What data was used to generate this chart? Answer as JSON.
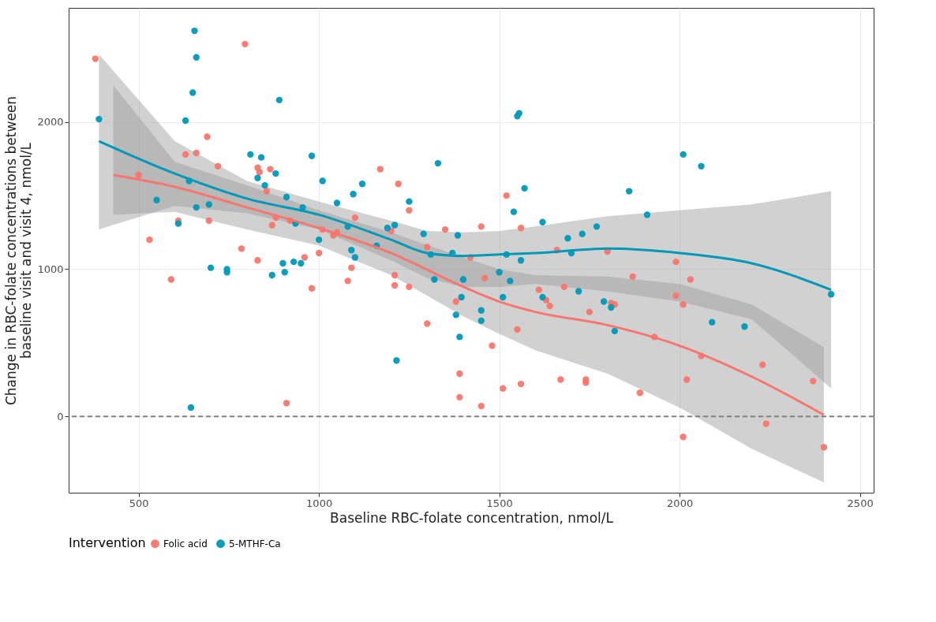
{
  "chart_data": {
    "type": "scatter",
    "xlabel": "Baseline RBC-folate concentration, nmol/L",
    "ylabel": "Change in RBC-folate concentrations between baseline visit and visit 4, nmol/L",
    "legend_title": "Intervention",
    "legend": "bottom",
    "grid": true,
    "marker": "circle",
    "xlim": [
      306,
      2538
    ],
    "xticks": [
      500,
      1000,
      1500,
      2000,
      2500
    ],
    "ylim": [
      -519,
      2776
    ],
    "yticks": [
      0,
      1000,
      2000
    ],
    "ref_lines": [
      {
        "axis": "y",
        "value": 0,
        "color": "#808080",
        "line_style": "dashed"
      }
    ],
    "series": [
      {
        "type": "line",
        "line_style": "solid",
        "marker": "none",
        "color": "#f8766d",
        "x": [
          430,
          600,
          800,
          1000,
          1200,
          1400,
          1500,
          1600,
          1800,
          2000,
          2200,
          2400
        ],
        "values": [
          1640,
          1560,
          1420,
          1280,
          1110,
          880,
          780,
          710,
          620,
          480,
          270,
          10
        ],
        "lower": [
          1370,
          1390,
          1270,
          1160,
          960,
          680,
          560,
          450,
          290,
          60,
          -220,
          -450
        ],
        "upper": [
          2250,
          1730,
          1570,
          1400,
          1250,
          1080,
          1000,
          960,
          950,
          900,
          760,
          470
        ]
      },
      {
        "type": "line",
        "line_style": "solid",
        "marker": "none",
        "color": "#0098b8",
        "x": [
          390,
          600,
          800,
          1000,
          1200,
          1300,
          1400,
          1500,
          1600,
          1800,
          2000,
          2200,
          2420
        ],
        "values": [
          1870,
          1650,
          1480,
          1370,
          1200,
          1110,
          1090,
          1100,
          1110,
          1140,
          1110,
          1040,
          860
        ],
        "lower": [
          1270,
          1430,
          1380,
          1270,
          1060,
          940,
          880,
          880,
          900,
          850,
          780,
          660,
          190
        ],
        "upper": [
          2460,
          1870,
          1600,
          1460,
          1330,
          1260,
          1250,
          1260,
          1290,
          1360,
          1400,
          1440,
          1530
        ]
      },
      {
        "name": "Folic acid",
        "color": "#f8766d",
        "x": [
          380,
          500,
          530,
          590,
          610,
          630,
          660,
          690,
          695,
          720,
          785,
          795,
          830,
          830,
          835,
          855,
          865,
          870,
          880,
          910,
          920,
          960,
          980,
          1000,
          1010,
          1040,
          1050,
          1080,
          1090,
          1100,
          1170,
          1200,
          1210,
          1210,
          1220,
          1250,
          1250,
          1300,
          1300,
          1350,
          1380,
          1390,
          1390,
          1420,
          1450,
          1450,
          1460,
          1480,
          1510,
          1520,
          1550,
          1560,
          1560,
          1610,
          1630,
          1640,
          1660,
          1670,
          1680,
          1740,
          1740,
          1750,
          1800,
          1810,
          1820,
          1870,
          1890,
          1930,
          1990,
          1990,
          2010,
          2010,
          2020,
          2030,
          2060,
          2230,
          2240,
          2370,
          2400
        ],
        "values": [
          2430,
          1640,
          1200,
          930,
          1330,
          1780,
          1790,
          1900,
          1330,
          1700,
          1140,
          2530,
          1060,
          1690,
          1660,
          1530,
          1680,
          1300,
          1350,
          90,
          1330,
          1080,
          870,
          1110,
          1270,
          1230,
          1250,
          920,
          1010,
          1350,
          1680,
          1260,
          960,
          890,
          1580,
          1400,
          880,
          1150,
          630,
          1270,
          780,
          290,
          130,
          1080,
          1290,
          70,
          940,
          480,
          190,
          1500,
          590,
          220,
          1280,
          860,
          790,
          750,
          1130,
          250,
          880,
          250,
          230,
          710,
          1120,
          770,
          760,
          950,
          160,
          540,
          1050,
          820,
          760,
          -140,
          250,
          930,
          410,
          350,
          -50,
          240,
          -210
        ]
      },
      {
        "name": "5-MTHF-Ca",
        "color": "#0098b8",
        "x": [
          390,
          550,
          610,
          630,
          640,
          645,
          650,
          655,
          660,
          660,
          695,
          700,
          745,
          745,
          810,
          830,
          840,
          850,
          870,
          880,
          890,
          900,
          905,
          910,
          930,
          935,
          950,
          955,
          980,
          1000,
          1010,
          1050,
          1080,
          1090,
          1095,
          1100,
          1120,
          1160,
          1190,
          1210,
          1215,
          1250,
          1290,
          1310,
          1320,
          1330,
          1370,
          1380,
          1385,
          1390,
          1395,
          1400,
          1450,
          1450,
          1500,
          1510,
          1520,
          1530,
          1540,
          1550,
          1555,
          1560,
          1570,
          1620,
          1620,
          1690,
          1700,
          1720,
          1730,
          1770,
          1790,
          1810,
          1820,
          1860,
          1910,
          2010,
          2060,
          2090,
          2180,
          2420
        ],
        "values": [
          2020,
          1470,
          1310,
          2010,
          1600,
          60,
          2200,
          2620,
          2440,
          1420,
          1440,
          1010,
          1000,
          980,
          1780,
          1620,
          1760,
          1570,
          960,
          1650,
          2150,
          1040,
          980,
          1490,
          1050,
          1310,
          1040,
          1420,
          1770,
          1200,
          1600,
          1450,
          1290,
          1130,
          1510,
          1080,
          1580,
          1160,
          1280,
          1300,
          380,
          1460,
          1240,
          1100,
          930,
          1720,
          1110,
          690,
          1230,
          540,
          810,
          930,
          720,
          650,
          980,
          810,
          1100,
          920,
          1390,
          2040,
          2060,
          1060,
          1550,
          1320,
          810,
          1210,
          1110,
          850,
          1240,
          1290,
          780,
          740,
          580,
          1530,
          1370,
          1780,
          1700,
          640,
          610,
          830
        ]
      }
    ]
  }
}
